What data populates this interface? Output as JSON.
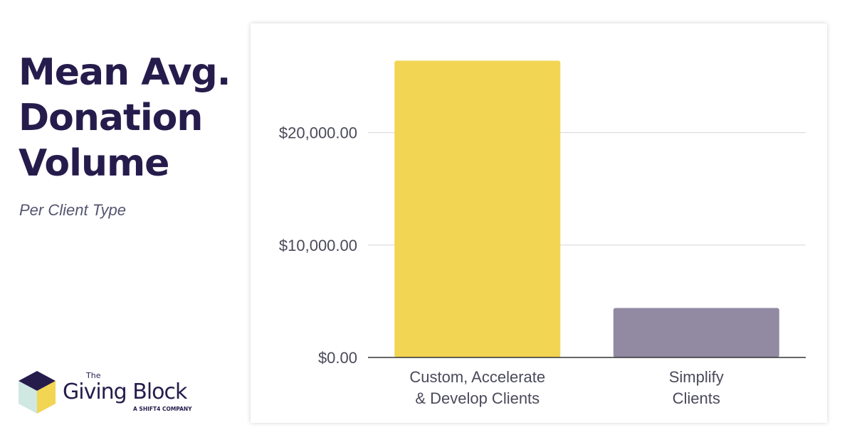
{
  "heading": {
    "line1": "Mean Avg.",
    "line2": "Donation",
    "line3": "Volume",
    "subtitle": "Per Client Type"
  },
  "logo": {
    "the": "The",
    "name": "Giving Block",
    "tagline": "A SHIFT4 COMPANY",
    "colors": {
      "top": "#261c4c",
      "left": "#cfe8e2",
      "right": "#f2d552"
    }
  },
  "chart_data": {
    "type": "bar",
    "categories": [
      [
        "Custom, Accelerate",
        "& Develop Clients"
      ],
      [
        "Simplify",
        "Clients"
      ]
    ],
    "values": [
      26400,
      4400
    ],
    "colors": [
      "#f2d552",
      "#928aa3"
    ],
    "yticks": [
      0,
      10000,
      20000
    ],
    "ytick_labels": [
      "$0.00",
      "$10,000.00",
      "$20,000.00"
    ],
    "ylim": [
      0,
      28000
    ],
    "grid": true,
    "legend": "none"
  }
}
